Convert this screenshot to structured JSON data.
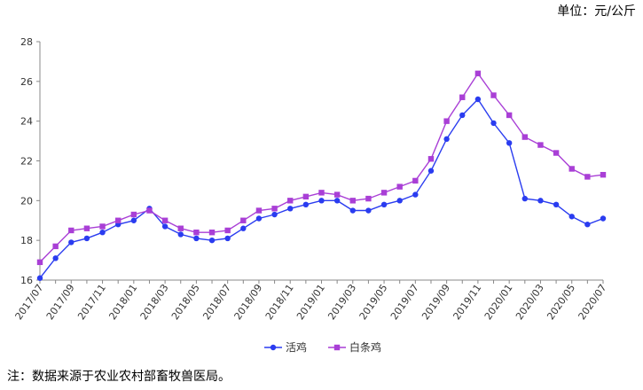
{
  "header": {
    "unit_text": "单位：元/公斤"
  },
  "footer": {
    "note_text": "注：数据来源于农业农村部畜牧兽医局。"
  },
  "chart_data": {
    "type": "line",
    "ylim": [
      16,
      28
    ],
    "yticks": [
      16,
      18,
      20,
      22,
      24,
      26,
      28
    ],
    "grid": false,
    "legend_position": "bottom",
    "x": [
      "2017/07",
      "2017/08",
      "2017/09",
      "2017/10",
      "2017/11",
      "2017/12",
      "2018/01",
      "2018/02",
      "2018/03",
      "2018/04",
      "2018/05",
      "2018/06",
      "2018/07",
      "2018/08",
      "2018/09",
      "2018/10",
      "2018/11",
      "2018/12",
      "2019/01",
      "2019/02",
      "2019/03",
      "2019/04",
      "2019/05",
      "2019/06",
      "2019/07",
      "2019/08",
      "2019/09",
      "2019/10",
      "2019/11",
      "2019/12",
      "2020/01",
      "2020/02",
      "2020/03",
      "2020/04",
      "2020/05",
      "2020/06",
      "2020/07"
    ],
    "x_tick_labels": [
      "2017/07",
      "2017/09",
      "2017/11",
      "2018/01",
      "2018/03",
      "2018/05",
      "2018/07",
      "2018/09",
      "2018/11",
      "2019/01",
      "2019/03",
      "2019/05",
      "2019/07",
      "2019/09",
      "2019/11",
      "2020/01",
      "2020/03",
      "2020/05",
      "2020/07"
    ],
    "series": [
      {
        "name": "活鸡",
        "color": "#2a3cf0",
        "marker": "circle",
        "values": [
          16.1,
          17.1,
          17.9,
          18.1,
          18.4,
          18.8,
          19.0,
          19.6,
          18.7,
          18.3,
          18.1,
          18.0,
          18.1,
          18.6,
          19.1,
          19.3,
          19.6,
          19.8,
          20.0,
          20.0,
          19.5,
          19.5,
          19.8,
          20.0,
          20.3,
          21.5,
          23.1,
          24.3,
          25.1,
          23.9,
          22.9,
          20.1,
          20.0,
          19.8,
          19.2,
          18.8,
          19.1
        ]
      },
      {
        "name": "白条鸡",
        "color": "#a93fd6",
        "marker": "square",
        "values": [
          16.9,
          17.7,
          18.5,
          18.6,
          18.7,
          19.0,
          19.3,
          19.5,
          19.0,
          18.6,
          18.4,
          18.4,
          18.5,
          19.0,
          19.5,
          19.6,
          20.0,
          20.2,
          20.4,
          20.3,
          20.0,
          20.1,
          20.4,
          20.7,
          21.0,
          22.1,
          24.0,
          25.2,
          26.4,
          25.3,
          24.3,
          23.2,
          22.8,
          22.4,
          21.6,
          21.2,
          21.3
        ]
      }
    ]
  }
}
